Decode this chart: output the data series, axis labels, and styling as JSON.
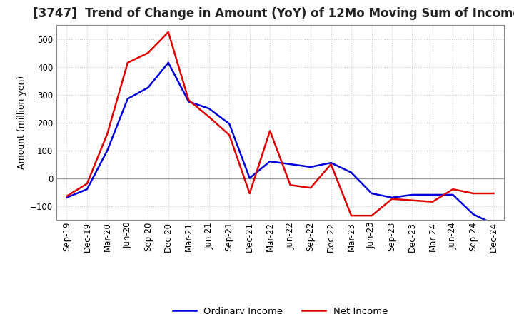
{
  "title": "[3747]  Trend of Change in Amount (YoY) of 12Mo Moving Sum of Incomes",
  "ylabel": "Amount (million yen)",
  "x_labels": [
    "Sep-19",
    "Dec-19",
    "Mar-20",
    "Jun-20",
    "Sep-20",
    "Dec-20",
    "Mar-21",
    "Jun-21",
    "Sep-21",
    "Dec-21",
    "Mar-22",
    "Jun-22",
    "Sep-22",
    "Dec-22",
    "Mar-23",
    "Jun-23",
    "Sep-23",
    "Dec-23",
    "Mar-24",
    "Jun-24",
    "Sep-24",
    "Dec-24"
  ],
  "ordinary_income": [
    -70,
    -40,
    100,
    285,
    325,
    415,
    275,
    250,
    195,
    0,
    60,
    50,
    40,
    55,
    20,
    -55,
    -70,
    -60,
    -60,
    -60,
    -130,
    -165
  ],
  "net_income": [
    -65,
    -20,
    160,
    415,
    450,
    525,
    280,
    220,
    155,
    -55,
    170,
    -25,
    -35,
    50,
    -135,
    -135,
    -75,
    -80,
    -85,
    -40,
    -55,
    -55
  ],
  "ordinary_color": "#0000dd",
  "net_color": "#dd0000",
  "ylim": [
    -150,
    550
  ],
  "yticks": [
    -100,
    0,
    100,
    200,
    300,
    400,
    500
  ],
  "background_color": "#ffffff",
  "grid_color": "#cccccc",
  "legend_labels": [
    "Ordinary Income",
    "Net Income"
  ],
  "line_width": 1.8,
  "title_fontsize": 12,
  "axis_fontsize": 9,
  "tick_fontsize": 8.5
}
